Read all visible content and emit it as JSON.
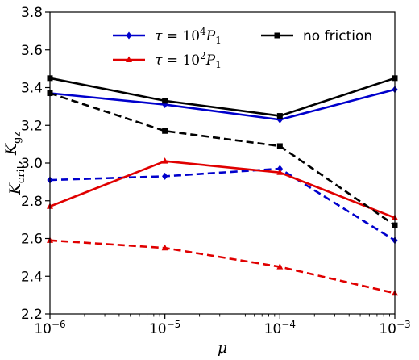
{
  "chart_data": {
    "type": "line",
    "xscale": "log",
    "x": [
      1e-06,
      1e-05,
      0.0001,
      0.001
    ],
    "xlim": [
      1e-06,
      0.001
    ],
    "ylim": [
      2.2,
      3.8
    ],
    "xticks": [
      {
        "base": "10",
        "exp": "−6"
      },
      {
        "base": "10",
        "exp": "−5"
      },
      {
        "base": "10",
        "exp": "−4"
      },
      {
        "base": "10",
        "exp": "−3"
      }
    ],
    "yticks": [
      "2.2",
      "2.4",
      "2.6",
      "2.8",
      "3.0",
      "3.2",
      "3.4",
      "3.6",
      "3.8"
    ],
    "xlabel": "μ",
    "ylabel": "Kcrit, Kgz",
    "grid": false,
    "legend_position": "top",
    "series": [
      {
        "name": "τ = 10⁴P₁ (Kcrit)",
        "color": "#0000cc",
        "dash": "solid",
        "marker": "diamond",
        "values": [
          3.37,
          3.31,
          3.23,
          3.39
        ]
      },
      {
        "name": "τ = 10⁴P₁ (Kgz)",
        "color": "#0000cc",
        "dash": "dashed",
        "marker": "diamond",
        "values": [
          2.91,
          2.93,
          2.97,
          2.59
        ]
      },
      {
        "name": "τ = 10²P₁ (Kcrit)",
        "color": "#e00000",
        "dash": "solid",
        "marker": "triangle",
        "values": [
          2.77,
          3.01,
          2.95,
          2.71
        ]
      },
      {
        "name": "τ = 10²P₁ (Kgz)",
        "color": "#e00000",
        "dash": "dashed",
        "marker": "triangle",
        "values": [
          2.59,
          2.55,
          2.45,
          2.31
        ]
      },
      {
        "name": "no friction (Kcrit)",
        "color": "#000000",
        "dash": "solid",
        "marker": "square",
        "values": [
          3.45,
          3.33,
          3.25,
          3.45
        ]
      },
      {
        "name": "no friction (Kgz)",
        "color": "#000000",
        "dash": "dashed",
        "marker": "square",
        "values": [
          3.37,
          3.17,
          3.09,
          2.67
        ]
      }
    ],
    "legend": [
      {
        "label_prefix": "τ",
        "label_eq": " = 10",
        "label_sup": "4",
        "label_p": "P",
        "label_sub": "1",
        "color": "#0000cc",
        "marker": "diamond"
      },
      {
        "label_prefix": "τ",
        "label_eq": " = 10",
        "label_sup": "2",
        "label_p": "P",
        "label_sub": "1",
        "color": "#e00000",
        "marker": "triangle"
      },
      {
        "label_text": "no friction",
        "color": "#000000",
        "marker": "square"
      }
    ]
  }
}
